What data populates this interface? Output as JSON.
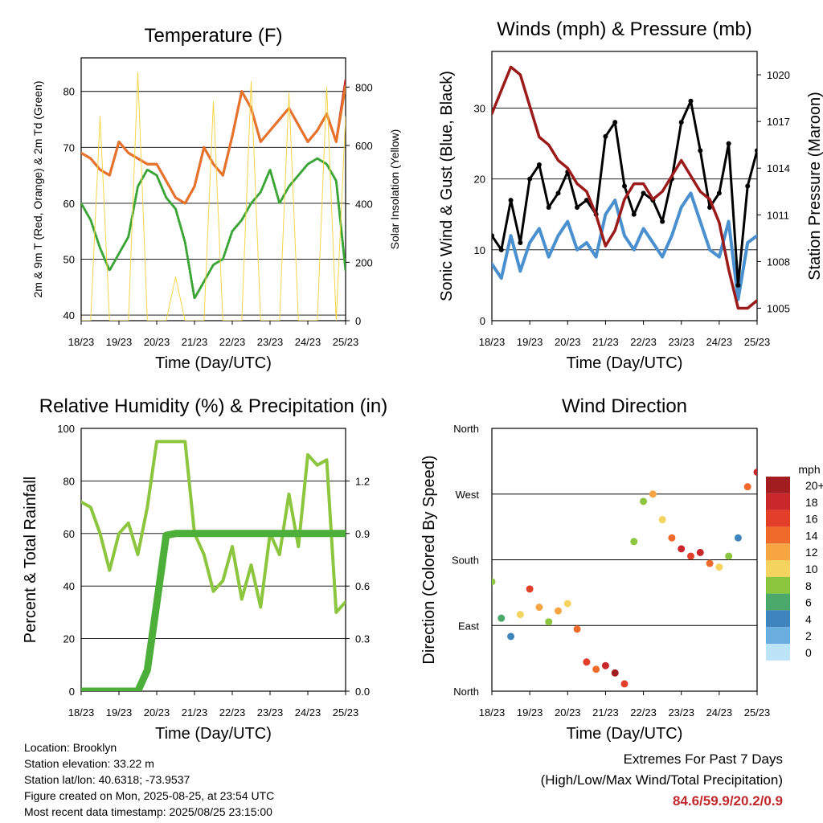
{
  "x_ticks": [
    "18/23",
    "19/23",
    "20/23",
    "21/23",
    "22/23",
    "23/23",
    "24/23",
    "25/23"
  ],
  "x_label": "Time (Day/UTC)",
  "chart_data": [
    {
      "type": "line",
      "title": "Temperature (F)",
      "xlabel": "Time (Day/UTC)",
      "ylabel": "2m & 9m T (Red, Orange) & 2m Td (Green)",
      "ylabel_right": "Solar Insolation (Yellow)",
      "ylim": [
        39,
        86
      ],
      "yticks": [
        40,
        50,
        60,
        70,
        80
      ],
      "ylim_right": [
        0,
        900
      ],
      "yticks_right": [
        0,
        200,
        400,
        600,
        800
      ],
      "x": [
        0,
        0.25,
        0.5,
        0.75,
        1,
        1.25,
        1.5,
        1.75,
        2,
        2.25,
        2.5,
        2.75,
        3,
        3.25,
        3.5,
        3.75,
        4,
        4.25,
        4.5,
        4.75,
        5,
        5.25,
        5.5,
        5.75,
        6,
        6.25,
        6.5,
        6.75,
        7
      ],
      "series": [
        {
          "name": "2m T",
          "color": "#c0282c",
          "values": [
            69,
            68,
            66,
            65,
            71,
            69,
            68,
            67,
            67,
            64,
            61,
            60,
            63,
            70,
            67,
            65,
            72,
            80,
            77,
            71,
            73,
            75,
            77,
            74,
            71,
            73,
            76,
            71,
            82
          ]
        },
        {
          "name": "9m T",
          "color": "#e8742a",
          "values": [
            69,
            68,
            66,
            65,
            71,
            69,
            68,
            67,
            67,
            64,
            61,
            60,
            63,
            70,
            67,
            65,
            72,
            80,
            77,
            71,
            73,
            75,
            77,
            74,
            71,
            73,
            76,
            71,
            81
          ]
        },
        {
          "name": "2m Td",
          "color": "#3aa535",
          "values": [
            60,
            57,
            52,
            48,
            51,
            54,
            63,
            66,
            65,
            61,
            59,
            53,
            43,
            46,
            49,
            50,
            55,
            57,
            60,
            62,
            66,
            60,
            63,
            65,
            67,
            68,
            67,
            64,
            48
          ]
        },
        {
          "name": "Solar Insolation",
          "color": "#f5d547",
          "axis": "right",
          "values": [
            0,
            0,
            700,
            0,
            0,
            0,
            850,
            0,
            0,
            0,
            150,
            0,
            0,
            0,
            750,
            0,
            0,
            0,
            820,
            0,
            0,
            0,
            780,
            0,
            0,
            0,
            800,
            0,
            700
          ]
        }
      ]
    },
    {
      "type": "line",
      "title": "Winds (mph) & Pressure (mb)",
      "xlabel": "Time (Day/UTC)",
      "ylabel": "Sonic Wind & Gust (Blue, Black)",
      "ylabel_right": "Station Pressure (Maroon)",
      "ylim": [
        0,
        38
      ],
      "yticks": [
        0,
        10,
        20,
        30
      ],
      "ylim_right": [
        1004.2,
        1021.5
      ],
      "yticks_right": [
        1005,
        1008,
        1011,
        1014,
        1017,
        1020
      ],
      "x": [
        0,
        0.25,
        0.5,
        0.75,
        1,
        1.25,
        1.5,
        1.75,
        2,
        2.25,
        2.5,
        2.75,
        3,
        3.25,
        3.5,
        3.75,
        4,
        4.25,
        4.5,
        4.75,
        5,
        5.25,
        5.5,
        5.75,
        6,
        6.25,
        6.5,
        6.75,
        7
      ],
      "series": [
        {
          "name": "Sonic Wind",
          "color": "#4a90cf",
          "values": [
            8,
            6,
            12,
            7,
            11,
            13,
            9,
            12,
            14,
            10,
            11,
            9,
            15,
            17,
            12,
            10,
            13,
            11,
            9,
            12,
            16,
            18,
            14,
            10,
            9,
            14,
            3,
            11,
            12
          ]
        },
        {
          "name": "Gust",
          "color": "#000000",
          "values": [
            12,
            10,
            17,
            11,
            20,
            22,
            16,
            18,
            21,
            16,
            17,
            15,
            26,
            28,
            19,
            15,
            18,
            17,
            14,
            20,
            28,
            31,
            24,
            16,
            18,
            25,
            5,
            19,
            24
          ]
        },
        {
          "name": "Station Pressure",
          "color": "#9b1b1b",
          "axis": "right",
          "values": [
            1017.5,
            1019,
            1020.5,
            1020,
            1018,
            1016,
            1015.5,
            1014.5,
            1014,
            1013,
            1012.5,
            1011,
            1009,
            1010,
            1012,
            1013,
            1013,
            1012,
            1012.5,
            1013.5,
            1014.5,
            1013.5,
            1012.5,
            1012,
            1010.5,
            1007.5,
            1005,
            1005,
            1005.5
          ]
        }
      ]
    },
    {
      "type": "line",
      "title": "Relative Humidity (%) & Precipitation (in)",
      "xlabel": "Time (Day/UTC)",
      "ylabel": "Percent & Total Rainfall",
      "ylim": [
        0,
        100
      ],
      "yticks": [
        0,
        20,
        40,
        60,
        80,
        100
      ],
      "ylim_right": [
        0,
        1.5
      ],
      "yticks_right": [
        "0.0",
        "0.3",
        "0.6",
        "0.9",
        "1.2"
      ],
      "x": [
        0,
        0.25,
        0.5,
        0.75,
        1,
        1.25,
        1.5,
        1.75,
        2,
        2.25,
        2.5,
        2.75,
        3,
        3.25,
        3.5,
        3.75,
        4,
        4.25,
        4.5,
        4.75,
        5,
        5.25,
        5.5,
        5.75,
        6,
        6.25,
        6.5,
        6.75,
        7
      ],
      "series": [
        {
          "name": "Relative Humidity",
          "color": "#8cc63f",
          "values": [
            72,
            70,
            60,
            46,
            60,
            64,
            52,
            70,
            95,
            95,
            95,
            95,
            60,
            52,
            38,
            42,
            55,
            35,
            48,
            32,
            60,
            52,
            75,
            55,
            90,
            86,
            88,
            30,
            34
          ]
        },
        {
          "name": "Total Precipitation",
          "color": "#4caf3a",
          "axis": "right",
          "values": [
            0,
            0,
            0,
            0,
            0,
            0,
            0,
            0.12,
            0.5,
            0.89,
            0.9,
            0.9,
            0.9,
            0.9,
            0.9,
            0.9,
            0.9,
            0.9,
            0.9,
            0.9,
            0.9,
            0.9,
            0.9,
            0.9,
            0.9,
            0.9,
            0.9,
            0.9,
            0.9
          ]
        }
      ]
    },
    {
      "type": "scatter",
      "title": "Wind Direction",
      "xlabel": "Time (Day/UTC)",
      "ylabel": "Direction (Colored By Speed)",
      "ylim": [
        0,
        360
      ],
      "ytick_labels": [
        "North",
        "East",
        "South",
        "West",
        "North"
      ],
      "x": [
        0,
        0.25,
        0.5,
        0.75,
        1,
        1.25,
        1.5,
        1.75,
        2,
        2.25,
        2.5,
        2.75,
        3,
        3.25,
        3.5,
        3.75,
        4,
        4.25,
        4.5,
        4.75,
        5,
        5.25,
        5.5,
        5.75,
        6,
        6.25,
        6.5,
        6.75,
        7
      ],
      "series": [
        {
          "name": "Wind Direction",
          "values": [
            150,
            100,
            75,
            105,
            140,
            115,
            95,
            110,
            120,
            85,
            40,
            30,
            35,
            25,
            10,
            205,
            260,
            270,
            235,
            210,
            195,
            185,
            190,
            175,
            170,
            185,
            210,
            280,
            300
          ],
          "speeds": [
            8,
            6,
            4,
            10,
            16,
            12,
            8,
            12,
            10,
            14,
            16,
            14,
            18,
            20,
            16,
            8,
            8,
            12,
            10,
            14,
            18,
            16,
            18,
            14,
            10,
            8,
            4,
            14,
            18
          ]
        }
      ],
      "colorbar": {
        "title": "mph",
        "labels": [
          "20+",
          "18",
          "16",
          "14",
          "12",
          "10",
          "8",
          "6",
          "4",
          "2",
          "0"
        ],
        "colors": [
          "#a11d20",
          "#c9272b",
          "#e33e2a",
          "#ef6a2b",
          "#f7a543",
          "#f4d35e",
          "#8cc63f",
          "#4aa86a",
          "#3f84bd",
          "#6aaee0",
          "#bde3f7"
        ]
      }
    }
  ],
  "info": {
    "location": "Location: Brooklyn",
    "elevation": "Station elevation: 33.22 m",
    "latlon": "Station lat/lon: 40.6318; -73.9537",
    "created": "Figure created on Mon, 2025-08-25, at 23:54 UTC",
    "recent": "Most recent data timestamp: 2025/08/25 23:15:00"
  },
  "extremes": {
    "title": "Extremes For Past 7 Days",
    "subtitle": "(High/Low/Max Wind/Total Precipitation)",
    "values": "84.6/59.9/20.2/0.9"
  }
}
